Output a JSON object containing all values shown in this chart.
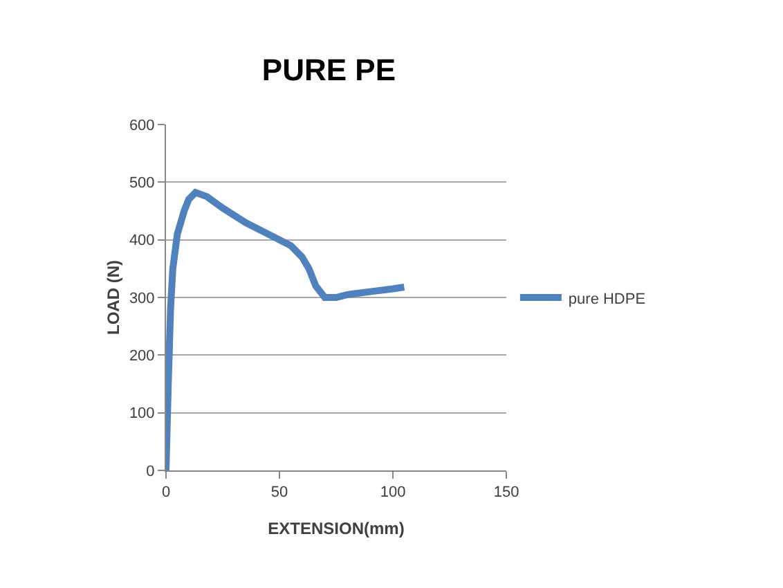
{
  "chart_data": {
    "type": "line",
    "title": "PURE PE",
    "xlabel": "EXTENSION(mm)",
    "ylabel": "LOAD (N)",
    "xlim": [
      0,
      150
    ],
    "xticks": [
      0,
      50,
      100,
      150
    ],
    "ylim": [
      0,
      600
    ],
    "yticks": [
      0,
      100,
      200,
      300,
      400,
      500,
      600
    ],
    "grid": "y",
    "legend": "right",
    "marker": "none",
    "line_style": "solid",
    "series": [
      {
        "name": "pure HDPE",
        "color": "#4f81bd",
        "x": [
          0,
          1,
          2,
          3,
          5,
          8,
          10,
          13,
          18,
          25,
          35,
          45,
          55,
          60,
          63,
          66,
          70,
          75,
          80,
          90,
          100,
          105
        ],
        "values": [
          0,
          150,
          280,
          350,
          410,
          450,
          470,
          482,
          475,
          455,
          430,
          410,
          390,
          370,
          350,
          320,
          300,
          300,
          305,
          310,
          315,
          318
        ]
      }
    ]
  }
}
